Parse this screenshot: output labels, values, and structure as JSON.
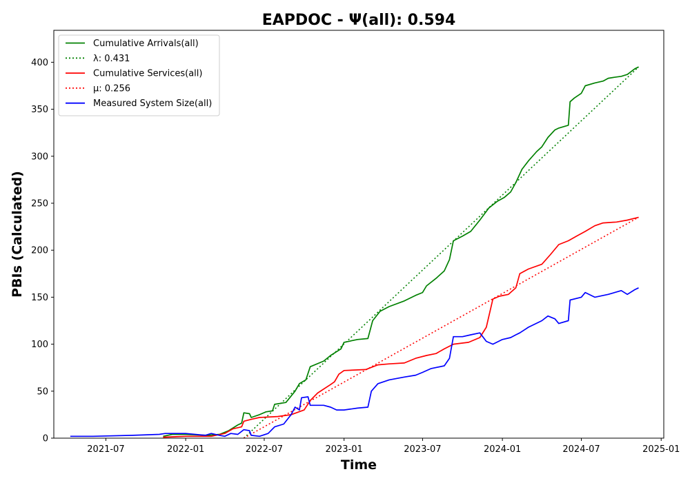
{
  "chart_data": {
    "type": "line",
    "title": "EAPDOC -  Ψ(all): 0.594",
    "xlabel": "Time",
    "ylabel": "PBIs (Calculated)",
    "xlim": [
      "2021-03-03",
      "2025-01-07"
    ],
    "ylim": [
      0,
      434
    ],
    "grid": false,
    "legend_position": "top-left",
    "x_ticks": [
      "2021-07",
      "2022-01",
      "2022-07",
      "2023-01",
      "2023-07",
      "2024-01",
      "2024-07",
      "2025-01"
    ],
    "y_ticks": [
      0,
      50,
      100,
      150,
      200,
      250,
      300,
      350,
      400
    ],
    "series": [
      {
        "name": "Cumulative Arrivals(all)",
        "color": "#008000",
        "style": "solid",
        "points": [
          [
            "2021-11-10",
            2
          ],
          [
            "2021-12-01",
            4
          ],
          [
            "2022-01-01",
            4
          ],
          [
            "2022-02-20",
            3
          ],
          [
            "2022-03-20",
            4
          ],
          [
            "2022-04-10",
            8
          ],
          [
            "2022-05-01",
            14
          ],
          [
            "2022-05-10",
            16
          ],
          [
            "2022-05-15",
            27
          ],
          [
            "2022-05-28",
            26
          ],
          [
            "2022-06-01",
            22
          ],
          [
            "2022-06-20",
            25
          ],
          [
            "2022-07-05",
            28
          ],
          [
            "2022-07-20",
            29
          ],
          [
            "2022-07-25",
            36
          ],
          [
            "2022-08-20",
            38
          ],
          [
            "2022-09-10",
            50
          ],
          [
            "2022-09-20",
            58
          ],
          [
            "2022-10-05",
            62
          ],
          [
            "2022-10-15",
            76
          ],
          [
            "2022-11-15",
            82
          ],
          [
            "2022-12-01",
            88
          ],
          [
            "2022-12-25",
            95
          ],
          [
            "2023-01-01",
            102
          ],
          [
            "2023-02-01",
            105
          ],
          [
            "2023-02-25",
            106
          ],
          [
            "2023-03-08",
            125
          ],
          [
            "2023-03-25",
            135
          ],
          [
            "2023-04-15",
            140
          ],
          [
            "2023-05-20",
            146
          ],
          [
            "2023-06-15",
            152
          ],
          [
            "2023-07-01",
            155
          ],
          [
            "2023-07-10",
            162
          ],
          [
            "2023-08-01",
            170
          ],
          [
            "2023-08-20",
            178
          ],
          [
            "2023-09-01",
            190
          ],
          [
            "2023-09-10",
            210
          ],
          [
            "2023-10-01",
            215
          ],
          [
            "2023-10-20",
            220
          ],
          [
            "2023-11-10",
            232
          ],
          [
            "2023-12-01",
            245
          ],
          [
            "2023-12-20",
            252
          ],
          [
            "2024-01-05",
            256
          ],
          [
            "2024-01-20",
            262
          ],
          [
            "2024-02-01",
            272
          ],
          [
            "2024-02-15",
            286
          ],
          [
            "2024-03-01",
            295
          ],
          [
            "2024-03-20",
            305
          ],
          [
            "2024-04-01",
            310
          ],
          [
            "2024-04-15",
            320
          ],
          [
            "2024-05-01",
            328
          ],
          [
            "2024-05-10",
            330
          ],
          [
            "2024-06-01",
            333
          ],
          [
            "2024-06-05",
            358
          ],
          [
            "2024-06-15",
            362
          ],
          [
            "2024-07-01",
            367
          ],
          [
            "2024-07-10",
            375
          ],
          [
            "2024-08-01",
            378
          ],
          [
            "2024-08-20",
            380
          ],
          [
            "2024-09-01",
            383
          ],
          [
            "2024-09-15",
            384
          ],
          [
            "2024-10-01",
            385
          ],
          [
            "2024-10-15",
            387
          ],
          [
            "2024-11-01",
            393
          ],
          [
            "2024-11-10",
            395
          ]
        ]
      },
      {
        "name": "λ: 0.431",
        "color": "#008000",
        "style": "dotted",
        "points": [
          [
            "2022-05-15",
            0
          ],
          [
            "2024-11-10",
            395
          ]
        ]
      },
      {
        "name": "Cumulative Services(all)",
        "color": "#ff0000",
        "style": "solid",
        "points": [
          [
            "2021-11-10",
            1
          ],
          [
            "2022-01-01",
            2
          ],
          [
            "2022-03-01",
            2
          ],
          [
            "2022-04-01",
            5
          ],
          [
            "2022-04-20",
            10
          ],
          [
            "2022-05-10",
            12
          ],
          [
            "2022-05-15",
            18
          ],
          [
            "2022-06-01",
            20
          ],
          [
            "2022-06-20",
            22
          ],
          [
            "2022-08-01",
            23
          ],
          [
            "2022-09-01",
            25
          ],
          [
            "2022-10-01",
            30
          ],
          [
            "2022-10-15",
            40
          ],
          [
            "2022-11-01",
            48
          ],
          [
            "2022-12-01",
            57
          ],
          [
            "2022-12-10",
            60
          ],
          [
            "2022-12-20",
            68
          ],
          [
            "2023-01-01",
            72
          ],
          [
            "2023-02-20",
            73
          ],
          [
            "2023-03-20",
            78
          ],
          [
            "2023-04-15",
            79
          ],
          [
            "2023-05-20",
            80
          ],
          [
            "2023-06-15",
            85
          ],
          [
            "2023-07-10",
            88
          ],
          [
            "2023-08-01",
            90
          ],
          [
            "2023-08-20",
            95
          ],
          [
            "2023-09-10",
            100
          ],
          [
            "2023-10-15",
            102
          ],
          [
            "2023-11-10",
            107
          ],
          [
            "2023-11-25",
            118
          ],
          [
            "2023-12-10",
            148
          ],
          [
            "2023-12-25",
            151
          ],
          [
            "2024-01-15",
            153
          ],
          [
            "2024-02-01",
            160
          ],
          [
            "2024-02-10",
            175
          ],
          [
            "2024-03-01",
            180
          ],
          [
            "2024-04-01",
            185
          ],
          [
            "2024-04-20",
            195
          ],
          [
            "2024-05-10",
            206
          ],
          [
            "2024-06-01",
            210
          ],
          [
            "2024-06-20",
            215
          ],
          [
            "2024-07-10",
            220
          ],
          [
            "2024-08-01",
            226
          ],
          [
            "2024-08-20",
            229
          ],
          [
            "2024-09-20",
            230
          ],
          [
            "2024-10-15",
            232
          ],
          [
            "2024-11-10",
            235
          ]
        ]
      },
      {
        "name": "μ: 0.256",
        "color": "#ff0000",
        "style": "dotted",
        "points": [
          [
            "2022-05-15",
            0
          ],
          [
            "2024-11-10",
            235
          ]
        ]
      },
      {
        "name": "Measured System Size(all)",
        "color": "#0000ff",
        "style": "solid",
        "points": [
          [
            "2021-04-10",
            2
          ],
          [
            "2021-06-01",
            2
          ],
          [
            "2021-09-01",
            3
          ],
          [
            "2021-11-01",
            4
          ],
          [
            "2021-11-15",
            5
          ],
          [
            "2022-01-01",
            5
          ],
          [
            "2022-02-15",
            3
          ],
          [
            "2022-03-01",
            5
          ],
          [
            "2022-03-20",
            3
          ],
          [
            "2022-04-01",
            2
          ],
          [
            "2022-04-15",
            5
          ],
          [
            "2022-05-01",
            4
          ],
          [
            "2022-05-15",
            9
          ],
          [
            "2022-05-28",
            8
          ],
          [
            "2022-06-01",
            3
          ],
          [
            "2022-06-20",
            2
          ],
          [
            "2022-07-10",
            5
          ],
          [
            "2022-07-25",
            12
          ],
          [
            "2022-08-15",
            15
          ],
          [
            "2022-09-01",
            25
          ],
          [
            "2022-09-10",
            33
          ],
          [
            "2022-09-20",
            30
          ],
          [
            "2022-09-25",
            43
          ],
          [
            "2022-10-10",
            44
          ],
          [
            "2022-10-15",
            35
          ],
          [
            "2022-11-15",
            35
          ],
          [
            "2022-12-01",
            33
          ],
          [
            "2022-12-15",
            30
          ],
          [
            "2023-01-01",
            30
          ],
          [
            "2023-02-01",
            32
          ],
          [
            "2023-02-25",
            33
          ],
          [
            "2023-03-05",
            50
          ],
          [
            "2023-03-20",
            58
          ],
          [
            "2023-04-15",
            62
          ],
          [
            "2023-05-20",
            65
          ],
          [
            "2023-06-15",
            67
          ],
          [
            "2023-07-01",
            70
          ],
          [
            "2023-07-20",
            74
          ],
          [
            "2023-08-20",
            77
          ],
          [
            "2023-09-01",
            85
          ],
          [
            "2023-09-10",
            108
          ],
          [
            "2023-10-01",
            108
          ],
          [
            "2023-10-20",
            110
          ],
          [
            "2023-11-10",
            112
          ],
          [
            "2023-11-25",
            103
          ],
          [
            "2023-12-10",
            100
          ],
          [
            "2024-01-01",
            105
          ],
          [
            "2024-01-20",
            107
          ],
          [
            "2024-02-01",
            110
          ],
          [
            "2024-02-10",
            112
          ],
          [
            "2024-03-01",
            118
          ],
          [
            "2024-04-01",
            125
          ],
          [
            "2024-04-15",
            130
          ],
          [
            "2024-05-01",
            127
          ],
          [
            "2024-05-10",
            122
          ],
          [
            "2024-06-01",
            125
          ],
          [
            "2024-06-05",
            147
          ],
          [
            "2024-07-01",
            150
          ],
          [
            "2024-07-10",
            155
          ],
          [
            "2024-08-01",
            150
          ],
          [
            "2024-09-01",
            153
          ],
          [
            "2024-10-01",
            157
          ],
          [
            "2024-10-15",
            153
          ],
          [
            "2024-11-01",
            158
          ],
          [
            "2024-11-10",
            160
          ]
        ]
      }
    ]
  }
}
